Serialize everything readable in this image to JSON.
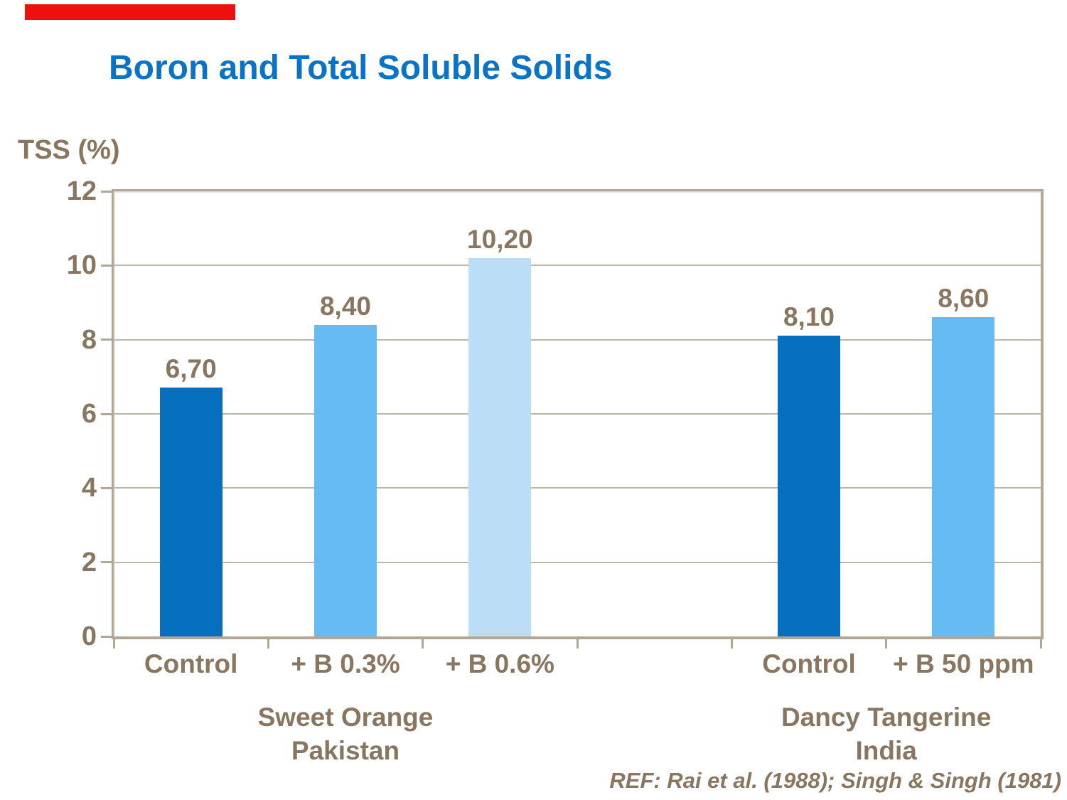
{
  "title": "Boron and Total Soluble Solids",
  "y_axis_title": "TSS (%)",
  "reference": "REF: Rai et al. (1988); Singh & Singh (1981)",
  "colors": {
    "accent_red": "#ee0f0f",
    "title_blue": "#0b73c6",
    "text_brown": "#887660",
    "axis_tan": "#b2a797",
    "grid_tan": "#beb6a8",
    "bar_dark_blue": "#0670be",
    "bar_sky_blue": "#66bbf2",
    "bar_pale_blue": "#bbddf6"
  },
  "chart_data": {
    "type": "bar",
    "title": "Boron and Total Soluble Solids",
    "xlabel": "",
    "ylabel": "TSS (%)",
    "ylim": [
      0,
      12
    ],
    "y_ticks": [
      0,
      2,
      4,
      6,
      8,
      10,
      12
    ],
    "grid": true,
    "legend": "none",
    "decimal_separator": ",",
    "categories": [
      "Control",
      "+ B 0.3%",
      "+ B 0.6%",
      "Control",
      "+ B 50 ppm"
    ],
    "values": [
      6.7,
      8.4,
      10.2,
      8.1,
      8.6
    ],
    "value_labels": [
      "6,70",
      "8,40",
      "10,20",
      "8,10",
      "8,60"
    ],
    "groups": [
      {
        "name_lines": [
          "Sweet Orange",
          "Pakistan"
        ],
        "bars": [
          {
            "category": "Control",
            "value": 6.7,
            "label": "6,70",
            "color_key": "bar_dark_blue"
          },
          {
            "category": "+ B 0.3%",
            "value": 8.4,
            "label": "8,40",
            "color_key": "bar_sky_blue"
          },
          {
            "category": "+ B 0.6%",
            "value": 10.2,
            "label": "10,20",
            "color_key": "bar_pale_blue"
          }
        ]
      },
      {
        "name_lines": [
          "Dancy Tangerine",
          "India"
        ],
        "bars": [
          {
            "category": "Control",
            "value": 8.1,
            "label": "8,10",
            "color_key": "bar_dark_blue"
          },
          {
            "category": "+ B 50 ppm",
            "value": 8.6,
            "label": "8,60",
            "color_key": "bar_sky_blue"
          }
        ]
      }
    ]
  }
}
